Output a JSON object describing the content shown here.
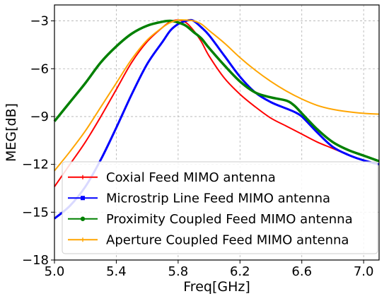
{
  "chart_data": {
    "type": "line",
    "xlabel": "Freq[GHz]",
    "ylabel": "MEG[dB]",
    "xlim": [
      5.0,
      7.1
    ],
    "ylim": [
      -18,
      -2
    ],
    "xticks": [
      5.0,
      5.4,
      5.8,
      6.2,
      6.6,
      7.0
    ],
    "xtick_labels": [
      "5.0",
      "5.4",
      "5.8",
      "6.2",
      "6.6",
      "7.0"
    ],
    "yticks": [
      -18,
      -15,
      -12,
      -9,
      -6,
      -3
    ],
    "ytick_labels": [
      "−18",
      "−15",
      "−12",
      "−9",
      "−6",
      "−3"
    ],
    "grid": true,
    "legend_position": "lower-right",
    "series": [
      {
        "name": "Coxial Feed MIMO antenna",
        "color": "#ff0000",
        "marker": "plus",
        "x": [
          5.0,
          5.1,
          5.2,
          5.3,
          5.4,
          5.5,
          5.6,
          5.7,
          5.75,
          5.8,
          5.85,
          5.9,
          5.95,
          6.0,
          6.1,
          6.2,
          6.3,
          6.4,
          6.5,
          6.6,
          6.7,
          6.8,
          6.9,
          7.0,
          7.1
        ],
        "y": [
          -13.4,
          -12.0,
          -10.6,
          -9.0,
          -7.3,
          -5.6,
          -4.3,
          -3.4,
          -3.05,
          -2.95,
          -3.1,
          -3.6,
          -4.3,
          -5.2,
          -6.6,
          -7.6,
          -8.4,
          -9.1,
          -9.6,
          -10.1,
          -10.6,
          -11.0,
          -11.4,
          -11.75,
          -12.0
        ]
      },
      {
        "name": "Microstrip Line Feed MIMO antenna",
        "color": "#0000ff",
        "marker": "square",
        "x": [
          5.0,
          5.1,
          5.2,
          5.3,
          5.4,
          5.5,
          5.6,
          5.7,
          5.75,
          5.8,
          5.85,
          5.88,
          5.9,
          5.95,
          6.0,
          6.1,
          6.2,
          6.3,
          6.4,
          6.5,
          6.55,
          6.6,
          6.7,
          6.8,
          6.9,
          7.0,
          7.1
        ],
        "y": [
          -15.4,
          -14.6,
          -13.4,
          -11.7,
          -9.7,
          -7.6,
          -5.7,
          -4.3,
          -3.6,
          -3.2,
          -3.0,
          -2.95,
          -3.0,
          -3.4,
          -3.9,
          -5.2,
          -6.5,
          -7.5,
          -8.1,
          -8.5,
          -8.7,
          -9.0,
          -10.0,
          -10.9,
          -11.4,
          -11.75,
          -12.0
        ]
      },
      {
        "name": "Proximity Coupled Feed MIMO antenna",
        "color": "#008000",
        "marker": "dot",
        "x": [
          5.0,
          5.1,
          5.2,
          5.3,
          5.4,
          5.5,
          5.6,
          5.7,
          5.75,
          5.8,
          5.85,
          5.9,
          5.95,
          6.0,
          6.1,
          6.2,
          6.3,
          6.4,
          6.5,
          6.55,
          6.6,
          6.7,
          6.8,
          6.9,
          7.0,
          7.1
        ],
        "y": [
          -9.3,
          -8.1,
          -6.9,
          -5.6,
          -4.6,
          -3.8,
          -3.3,
          -3.05,
          -3.0,
          -3.1,
          -3.3,
          -3.7,
          -4.1,
          -4.7,
          -5.8,
          -6.8,
          -7.5,
          -7.8,
          -8.0,
          -8.3,
          -8.8,
          -9.8,
          -10.6,
          -11.1,
          -11.45,
          -11.8
        ]
      },
      {
        "name": "Aperture Coupled Feed MIMO antenna",
        "color": "#ffa500",
        "marker": "plus",
        "x": [
          5.0,
          5.1,
          5.2,
          5.3,
          5.4,
          5.5,
          5.6,
          5.7,
          5.75,
          5.8,
          5.85,
          5.9,
          5.95,
          6.0,
          6.1,
          6.2,
          6.3,
          6.4,
          6.5,
          6.6,
          6.7,
          6.8,
          6.9,
          7.0,
          7.1
        ],
        "y": [
          -12.4,
          -11.2,
          -9.9,
          -8.4,
          -6.9,
          -5.4,
          -4.2,
          -3.4,
          -3.1,
          -2.95,
          -2.95,
          -3.0,
          -3.2,
          -3.6,
          -4.4,
          -5.3,
          -6.1,
          -6.8,
          -7.4,
          -7.9,
          -8.3,
          -8.55,
          -8.7,
          -8.8,
          -8.85
        ]
      }
    ]
  }
}
